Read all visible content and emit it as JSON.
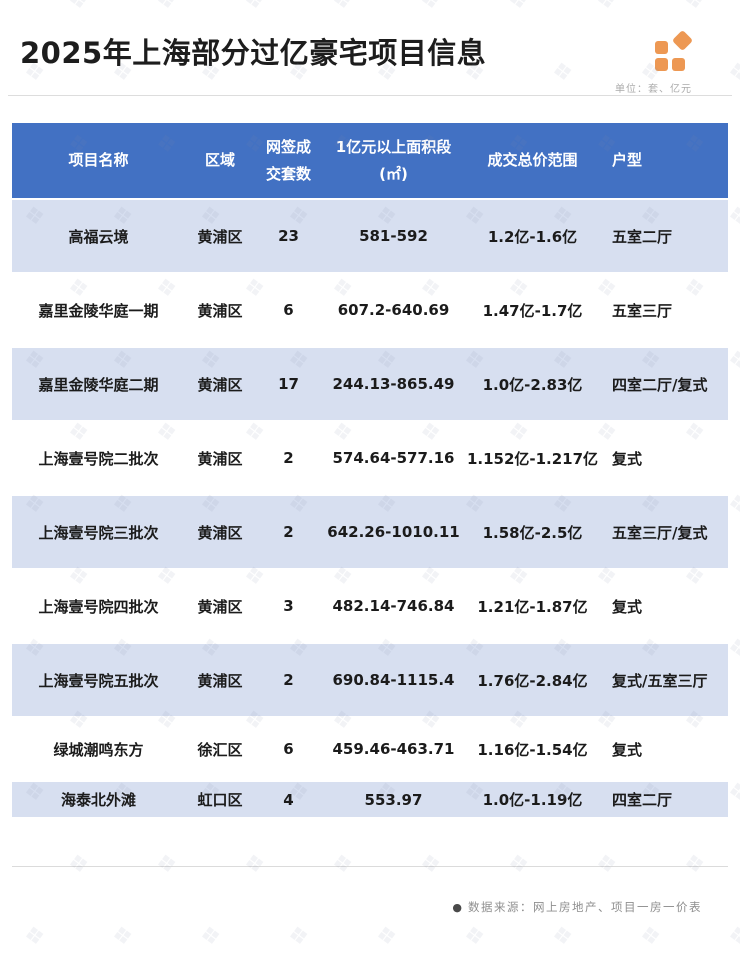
{
  "page": {
    "title": "2025年上海部分过亿豪宅项目信息",
    "unit_note": "单位：套、亿元",
    "source_bullet": "●",
    "source_note": "数据来源：网上房地产、项目一房一价表"
  },
  "colors": {
    "header_bg": "#4271C3",
    "row_alt_bg": "#D7DFF0",
    "row_bg": "#FFFFFF",
    "header_text": "#FFFFFF",
    "body_text": "#1B1B1B",
    "muted_text": "#ABABAB",
    "divider": "#DDDDDD",
    "accent_orange": "#ED9853"
  },
  "icons": {
    "brand_logo": "four-squares-with-diamond",
    "watermark_glyph": "❖"
  },
  "table": {
    "header_lines": [
      [
        "项目名称"
      ],
      [
        "区域"
      ],
      [
        "网签成",
        "交套数"
      ],
      [
        "1亿元以上面积段",
        "(㎡)"
      ],
      [
        "成交总价范围"
      ],
      [
        "户型"
      ]
    ]
  },
  "chart_data": {
    "type": "table",
    "title": "2025年上海部分过亿豪宅项目信息",
    "unit": "套、亿元",
    "columns": [
      "项目名称",
      "区域",
      "网签成交套数",
      "1亿元以上面积段(㎡)",
      "成交总价范围",
      "户型"
    ],
    "rows": [
      [
        "高福云境",
        "黄浦区",
        23,
        "581-592",
        "1.2亿-1.6亿",
        "五室二厅"
      ],
      [
        "嘉里金陵华庭一期",
        "黄浦区",
        6,
        "607.2-640.69",
        "1.47亿-1.7亿",
        "五室三厅"
      ],
      [
        "嘉里金陵华庭二期",
        "黄浦区",
        17,
        "244.13-865.49",
        "1.0亿-2.83亿",
        "四室二厅/复式"
      ],
      [
        "上海壹号院二批次",
        "黄浦区",
        2,
        "574.64-577.16",
        "1.152亿-1.217亿",
        "复式"
      ],
      [
        "上海壹号院三批次",
        "黄浦区",
        2,
        "642.26-1010.11",
        "1.58亿-2.5亿",
        "五室三厅/复式"
      ],
      [
        "上海壹号院四批次",
        "黄浦区",
        3,
        "482.14-746.84",
        "1.21亿-1.87亿",
        "复式"
      ],
      [
        "上海壹号院五批次",
        "黄浦区",
        2,
        "690.84-1115.4",
        "1.76亿-2.84亿",
        "复式/五室三厅"
      ],
      [
        "绿城潮鸣东方",
        "徐汇区",
        6,
        "459.46-463.71",
        "1.16亿-1.54亿",
        "复式"
      ],
      [
        "海泰北外滩",
        "虹口区",
        4,
        "553.97",
        "1.0亿-1.19亿",
        "四室二厅"
      ]
    ]
  }
}
